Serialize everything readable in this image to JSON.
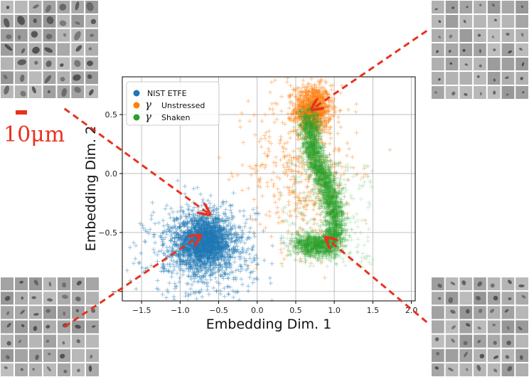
{
  "figure": {
    "scale_bar_label": "10μm",
    "scale_color": "#e8321f",
    "arrow_color": "#e8321f"
  },
  "cell_grids": [
    {
      "name": "cells-top-left",
      "rows": 7,
      "cols": 7,
      "density": "high"
    },
    {
      "name": "cells-top-right",
      "rows": 7,
      "cols": 7,
      "density": "low"
    },
    {
      "name": "cells-bottom-left",
      "rows": 7,
      "cols": 7,
      "density": "medium"
    },
    {
      "name": "cells-bottom-right",
      "rows": 7,
      "cols": 7,
      "density": "medium"
    }
  ],
  "chart_data": {
    "type": "scatter",
    "title": "",
    "xlabel": "Embedding Dim. 1",
    "ylabel": "Embedding Dim. 2",
    "xlim": [
      -1.75,
      2.05
    ],
    "ylim": [
      -1.08,
      0.82
    ],
    "xticks": [
      -1.5,
      -1.0,
      -0.5,
      0.0,
      0.5,
      1.0,
      1.5,
      2.0
    ],
    "xtick_labels": [
      "−1.5",
      "−1.0",
      "−0.5",
      "0.0",
      "0.5",
      "1.0",
      "1.5",
      "2.0"
    ],
    "yticks": [
      -1.0,
      -0.5,
      0.0,
      0.5
    ],
    "ytick_labels": [
      "−",
      "−0.5",
      "0.0",
      "0.5"
    ],
    "grid": true,
    "marker": "+",
    "legend": {
      "position": "top-left",
      "entries": [
        {
          "prefix": "",
          "label": "NIST ETFE"
        },
        {
          "prefix": "γ",
          "label": "Unstressed"
        },
        {
          "prefix": "γ",
          "label": "Shaken"
        }
      ]
    },
    "series": [
      {
        "name": "NIST ETFE",
        "color": "#1f77b4",
        "clusters": [
          {
            "center": [
              -0.68,
              -0.58
            ],
            "spread": [
              0.18,
              0.11
            ],
            "count": 1800
          },
          {
            "center": [
              -0.72,
              -0.66
            ],
            "spread": [
              0.35,
              0.2
            ],
            "count": 800
          }
        ]
      },
      {
        "name": "Unstressed",
        "color": "#ff7f0e",
        "clusters": [
          {
            "center": [
              0.72,
              0.55
            ],
            "spread": [
              0.12,
              0.1
            ],
            "count": 900
          },
          {
            "center": [
              0.6,
              0.05
            ],
            "spread": [
              0.35,
              0.35
            ],
            "count": 500
          }
        ]
      },
      {
        "name": "Shaken",
        "color": "#2ca02c",
        "path": [
          [
            0.68,
            0.5
          ],
          [
            0.72,
            0.2
          ],
          [
            0.9,
            -0.08
          ],
          [
            1.0,
            -0.3
          ],
          [
            1.02,
            -0.52
          ],
          [
            0.95,
            -0.62
          ],
          [
            0.55,
            -0.6
          ]
        ],
        "path_width": 0.05,
        "count": 2600
      }
    ],
    "arrows": [
      {
        "from": [
          -2.5,
          0.55
        ],
        "to": [
          -0.63,
          -0.34
        ]
      },
      {
        "from": [
          -2.5,
          -1.3
        ],
        "to": [
          -0.75,
          -0.53
        ]
      },
      {
        "from": [
          2.2,
          1.21
        ],
        "to": [
          0.72,
          0.55
        ]
      },
      {
        "from": [
          2.2,
          -1.26
        ],
        "to": [
          0.9,
          -0.55
        ]
      }
    ]
  }
}
